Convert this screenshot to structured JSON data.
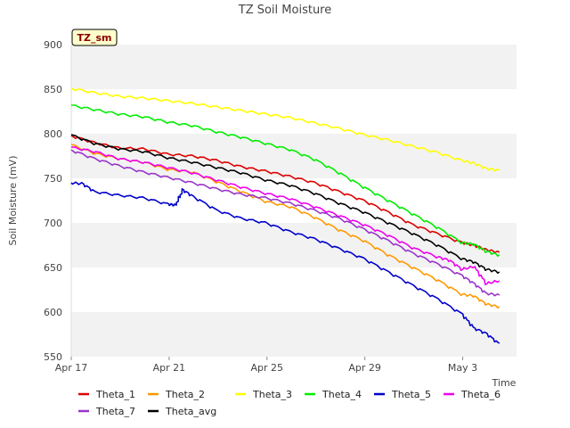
{
  "chart_data": {
    "type": "line",
    "title": "TZ Soil Moisture",
    "xlabel": "Time",
    "ylabel": "Soil Moisture (mV)",
    "badge": "TZ_sm",
    "ylim": [
      550,
      900
    ],
    "yticks": [
      550,
      600,
      650,
      700,
      750,
      800,
      850,
      900
    ],
    "xlim": [
      0,
      18.2
    ],
    "xticks": [
      {
        "day": 0,
        "label": "Apr 17"
      },
      {
        "day": 4,
        "label": "Apr 21"
      },
      {
        "day": 8,
        "label": "Apr 25"
      },
      {
        "day": 12,
        "label": "Apr 29"
      },
      {
        "day": 16,
        "label": "May 3"
      }
    ],
    "grid": "alternating horizontal bands",
    "legend_position": "bottom",
    "series": [
      {
        "name": "Theta_1",
        "color": "#dd0000",
        "x": [
          0,
          1,
          2,
          3,
          4,
          5,
          6,
          7,
          8,
          9,
          10,
          11,
          12,
          13,
          14,
          15,
          16,
          16.5,
          17,
          17.5
        ],
        "values": [
          798,
          790,
          784,
          783,
          777,
          775,
          770,
          763,
          758,
          752,
          745,
          735,
          725,
          712,
          698,
          688,
          678,
          675,
          670,
          667
        ]
      },
      {
        "name": "Theta_2",
        "color": "#ff9900",
        "x": [
          0,
          1,
          2,
          3,
          4,
          5,
          6,
          7,
          8,
          9,
          10,
          11,
          12,
          13,
          14,
          15,
          16,
          16.5,
          17,
          17.5
        ],
        "values": [
          788,
          778,
          772,
          768,
          760,
          757,
          746,
          735,
          724,
          718,
          706,
          692,
          680,
          664,
          650,
          636,
          620,
          618,
          609,
          606
        ]
      },
      {
        "name": "Theta_3",
        "color": "#ffff00",
        "x": [
          0,
          1,
          2,
          3,
          4,
          5,
          6,
          7,
          8,
          9,
          10,
          11,
          12,
          13,
          14,
          15,
          16,
          16.5,
          17,
          17.5
        ],
        "values": [
          851,
          846,
          842,
          840,
          837,
          834,
          830,
          826,
          822,
          818,
          812,
          806,
          799,
          793,
          786,
          779,
          770,
          767,
          761,
          759
        ]
      },
      {
        "name": "Theta_4",
        "color": "#00ee00",
        "x": [
          0,
          1,
          2,
          3,
          4,
          5,
          6,
          7,
          8,
          9,
          10,
          11,
          12,
          13,
          14,
          15,
          16,
          16.5,
          17,
          17.5
        ],
        "values": [
          832,
          827,
          822,
          819,
          813,
          809,
          802,
          796,
          789,
          782,
          771,
          756,
          740,
          725,
          710,
          695,
          678,
          676,
          668,
          664
        ]
      },
      {
        "name": "Theta_5",
        "color": "#0000cc",
        "x": [
          0,
          0.5,
          1,
          2,
          3,
          4,
          4.3,
          4.6,
          5,
          6,
          7,
          8,
          9,
          10,
          11,
          12,
          13,
          14,
          15,
          16,
          16.5,
          17,
          17.5
        ],
        "values": [
          745,
          744,
          735,
          731,
          728,
          721,
          720,
          737,
          730,
          714,
          705,
          700,
          690,
          682,
          671,
          660,
          645,
          630,
          615,
          598,
          582,
          576,
          565
        ]
      },
      {
        "name": "Theta_6",
        "color": "#ee00ee",
        "x": [
          0,
          1,
          2,
          3,
          4,
          5,
          6,
          7,
          8,
          9,
          10,
          11,
          12,
          13,
          14,
          15,
          15.5,
          16,
          16.5,
          17,
          17.5
        ],
        "values": [
          785,
          780,
          772,
          768,
          762,
          756,
          748,
          740,
          733,
          727,
          718,
          708,
          698,
          686,
          672,
          662,
          658,
          648,
          651,
          632,
          635
        ]
      },
      {
        "name": "Theta_7",
        "color": "#9933cc",
        "x": [
          0,
          1,
          2,
          3,
          4,
          5,
          6,
          7,
          8,
          9,
          10,
          11,
          12,
          13,
          14,
          15,
          16,
          16.5,
          17,
          17.5
        ],
        "values": [
          782,
          772,
          764,
          757,
          751,
          745,
          738,
          732,
          728,
          722,
          714,
          705,
          693,
          680,
          666,
          654,
          641,
          632,
          621,
          619
        ]
      },
      {
        "name": "Theta_avg",
        "color": "#000000",
        "x": [
          0,
          1,
          2,
          3,
          4,
          5,
          6,
          7,
          8,
          9,
          10,
          11,
          12,
          13,
          14,
          15,
          16,
          16.5,
          17,
          17.5
        ],
        "values": [
          799,
          789,
          783,
          780,
          773,
          768,
          762,
          756,
          748,
          742,
          733,
          722,
          712,
          700,
          688,
          675,
          660,
          656,
          648,
          645
        ]
      }
    ]
  }
}
